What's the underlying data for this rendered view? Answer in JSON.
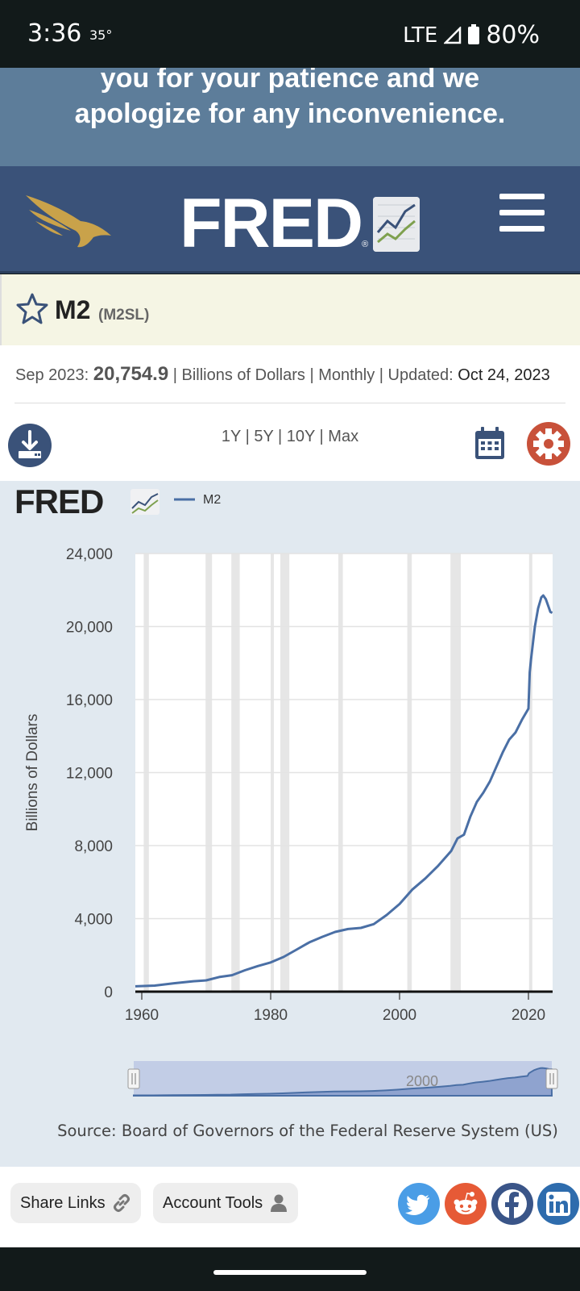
{
  "status": {
    "time": "3:36",
    "temp": "35°",
    "network": "LTE",
    "battery": "80%"
  },
  "notice": {
    "line1": "you for your patience and we",
    "line2": "apologize for any inconvenience."
  },
  "series": {
    "name": "M2",
    "code": "(M2SL)"
  },
  "info": {
    "date": "Sep 2023:",
    "value": "20,754.9",
    "meta": " | Billions of Dollars | Monthly | Updated: ",
    "updated": "Oct 24, 2023"
  },
  "ranges": [
    "1Y",
    "5Y",
    "10Y",
    "Max"
  ],
  "source": "Source: Board of Governors of the Federal Reserve System (US)",
  "footer": {
    "share": "Share Links",
    "account": "Account Tools"
  },
  "colors": {
    "line": "#4a6fa5",
    "recession": "#e6e6e6",
    "navy": "#3a5279",
    "gear": "#c8513a"
  },
  "chart_data": {
    "type": "line",
    "legend": "M2",
    "ylabel": "Billions of Dollars",
    "xlim": [
      1959,
      2023.75
    ],
    "ylim": [
      0,
      24000
    ],
    "yticks": [
      0,
      4000,
      8000,
      12000,
      16000,
      20000,
      24000
    ],
    "ytick_labels": [
      "0",
      "4,000",
      "8,000",
      "12,000",
      "16,000",
      "20,000",
      "24,000"
    ],
    "xticks": [
      1960,
      1980,
      2000,
      2020
    ],
    "recessions": [
      [
        1960.3,
        1961.1
      ],
      [
        1969.9,
        1970.9
      ],
      [
        1973.9,
        1975.2
      ],
      [
        1980.0,
        1980.5
      ],
      [
        1981.5,
        1982.9
      ],
      [
        1990.5,
        1991.2
      ],
      [
        2001.2,
        2001.9
      ],
      [
        2007.9,
        2009.5
      ],
      [
        2020.1,
        2020.3
      ]
    ],
    "navigator_label": "2000",
    "x": [
      1959,
      1962,
      1965,
      1968,
      1970,
      1972,
      1974,
      1976,
      1978,
      1980,
      1982,
      1984,
      1986,
      1988,
      1990,
      1992,
      1994,
      1996,
      1998,
      2000,
      2002,
      2004,
      2006,
      2008,
      2009,
      2010,
      2011,
      2012,
      2013,
      2014,
      2015,
      2016,
      2017,
      2018,
      2019,
      2020.0,
      2020.2,
      2020.4,
      2021.0,
      2021.5,
      2022.0,
      2022.3,
      2022.7,
      2023.0,
      2023.4,
      2023.7
    ],
    "values": [
      290,
      330,
      460,
      570,
      620,
      800,
      900,
      1170,
      1400,
      1600,
      1900,
      2300,
      2700,
      3000,
      3270,
      3430,
      3490,
      3700,
      4200,
      4800,
      5600,
      6200,
      6900,
      7700,
      8400,
      8600,
      9600,
      10400,
      10900,
      11500,
      12300,
      13100,
      13800,
      14200,
      14900,
      15500,
      17500,
      18200,
      20000,
      21000,
      21600,
      21700,
      21500,
      21200,
      20800,
      20750
    ]
  }
}
